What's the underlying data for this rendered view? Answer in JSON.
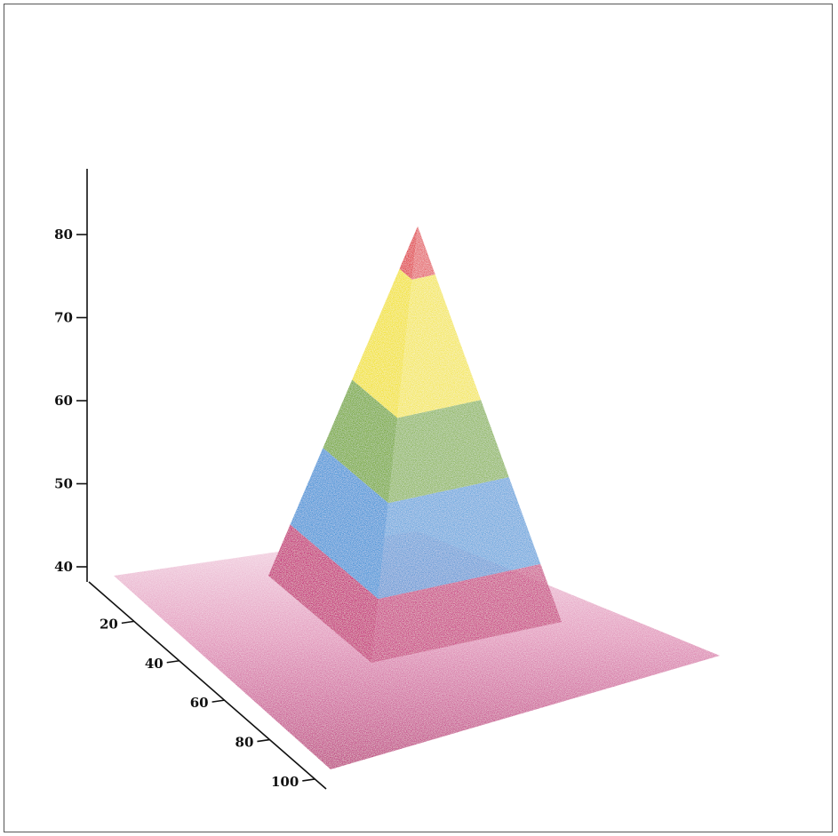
{
  "chart_data": {
    "type": "surface3d",
    "title": "",
    "xlabel": "",
    "ylabel": "",
    "zlabel": "",
    "z_axis": {
      "ticks": [
        40,
        50,
        60,
        70,
        80
      ],
      "range": [
        40,
        85
      ]
    },
    "depth_axis": {
      "ticks": [
        20,
        40,
        60,
        80,
        100
      ],
      "range": [
        0,
        100
      ]
    },
    "surface": {
      "shape": "pyramid",
      "base_level": 40,
      "peak_value": 81,
      "peak_position": [
        50,
        50
      ],
      "color_bands": [
        {
          "from": 40,
          "to": 46,
          "color": "#c2186e"
        },
        {
          "from": 46,
          "to": 55,
          "color": "#3b8fd6"
        },
        {
          "from": 55,
          "to": 63,
          "color": "#6fa52a"
        },
        {
          "from": 63,
          "to": 76,
          "color": "#f2e21a"
        },
        {
          "from": 76,
          "to": 82,
          "color": "#e0303a"
        }
      ]
    }
  }
}
